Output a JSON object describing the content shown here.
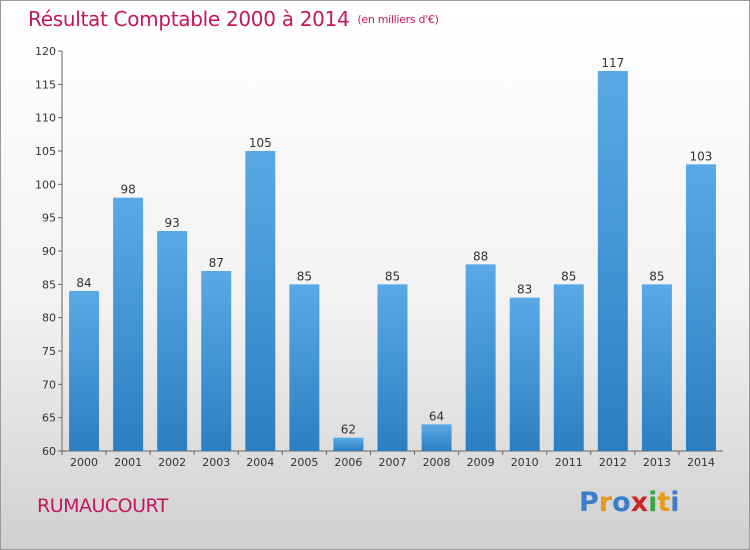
{
  "title": "Résultat Comptable 2000 à 2014",
  "subtitle": "(en milliers d'€)",
  "commune": "RUMAUCOURT",
  "logo": {
    "text": "Proxiti",
    "letters": [
      {
        "ch": "P",
        "color": "#3a7dc9"
      },
      {
        "ch": "r",
        "color": "#e59a1c"
      },
      {
        "ch": "o",
        "color": "#3a7dc9"
      },
      {
        "ch": "x",
        "color": "#c62828"
      },
      {
        "ch": "i",
        "color": "#3aa24a"
      },
      {
        "ch": "t",
        "color": "#e59a1c"
      },
      {
        "ch": "i",
        "color": "#3a7dc9"
      }
    ]
  },
  "colors": {
    "bar_top": "#5aa9e6",
    "bar_bottom": "#2b7fc1",
    "accent": "#c2185b"
  },
  "chart_data": {
    "type": "bar",
    "categories": [
      "2000",
      "2001",
      "2002",
      "2003",
      "2004",
      "2005",
      "2006",
      "2007",
      "2008",
      "2009",
      "2010",
      "2011",
      "2012",
      "2013",
      "2014"
    ],
    "values": [
      84,
      98,
      93,
      87,
      105,
      85,
      62,
      85,
      64,
      88,
      83,
      85,
      117,
      85,
      103
    ],
    "ylim": [
      60,
      120
    ],
    "yticks": [
      60,
      65,
      70,
      75,
      80,
      85,
      90,
      95,
      100,
      105,
      110,
      115,
      120
    ],
    "grid": false,
    "legend": "none",
    "title": "Résultat Comptable 2000 à 2014",
    "xlabel": "",
    "ylabel": ""
  }
}
